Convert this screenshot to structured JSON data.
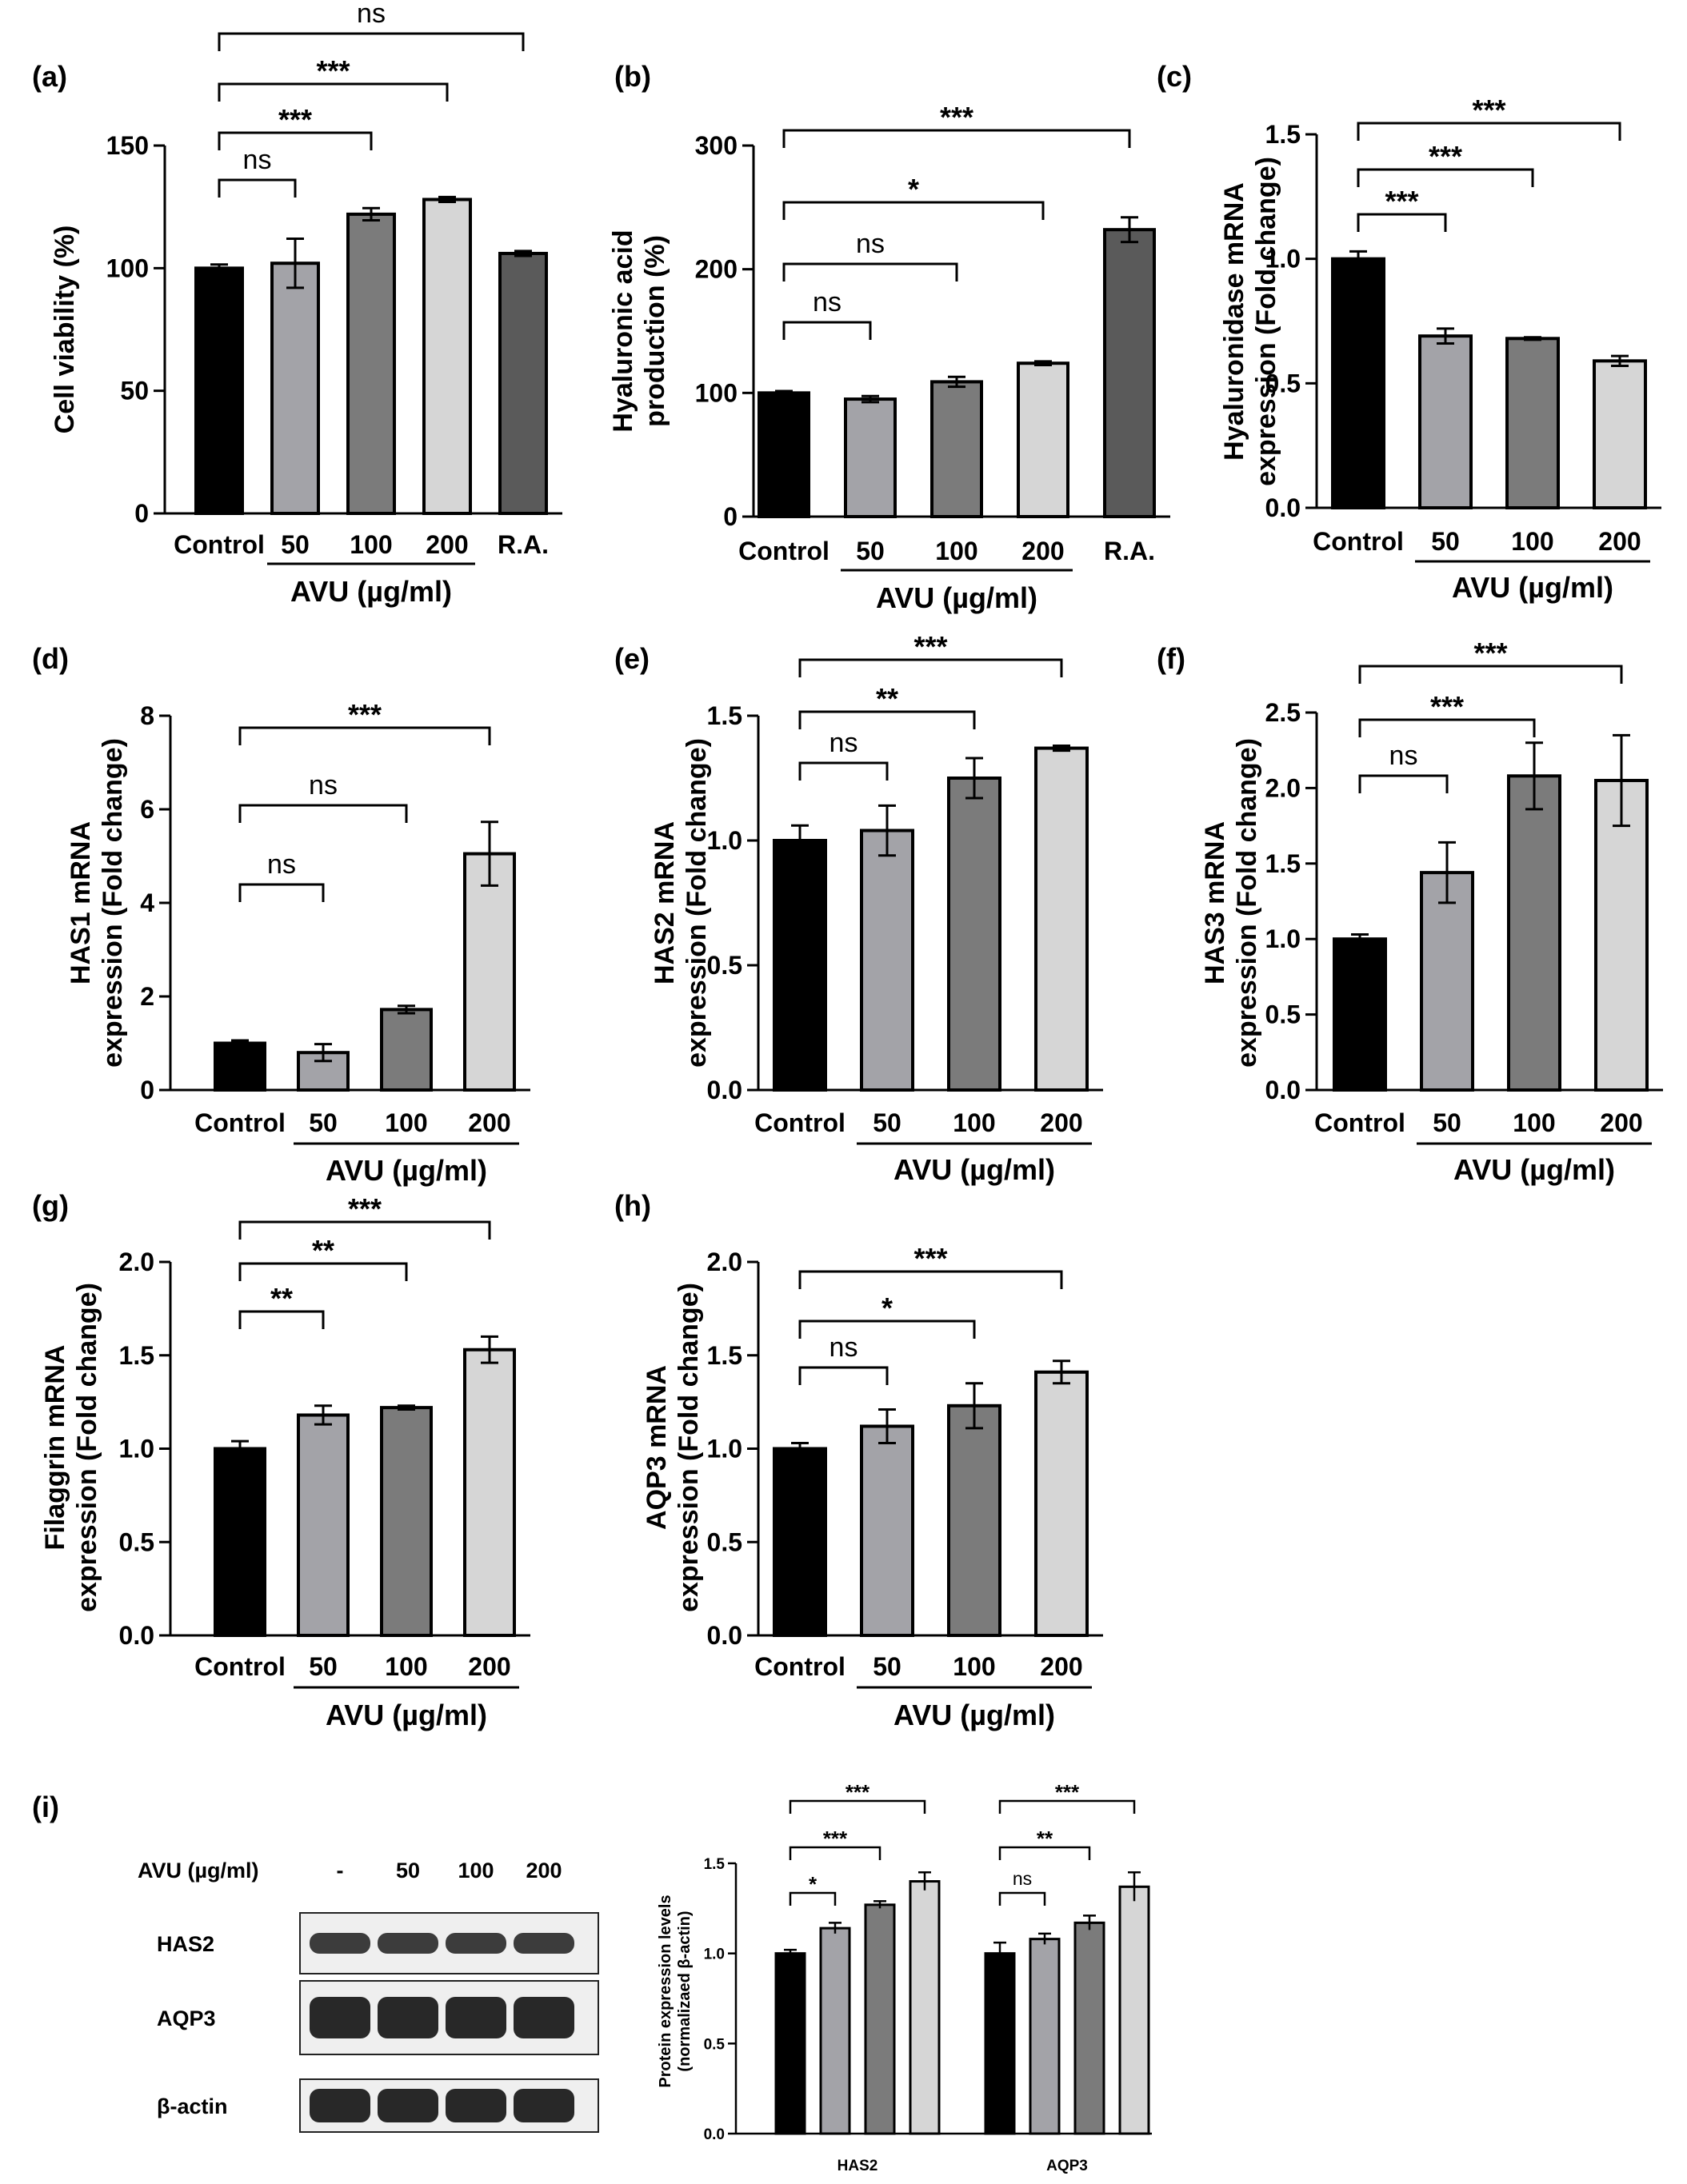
{
  "figure": {
    "fill_colors": [
      "#000000",
      "#a3a3a8",
      "#7b7b7b",
      "#d6d6d6",
      "#5a5a5a"
    ]
  },
  "chart_data": [
    {
      "id": "a",
      "panel_label": "(a)",
      "type": "bar",
      "ylabel": "Cell viability (%)",
      "ylim": [
        0,
        150
      ],
      "yticks": [
        0,
        50,
        100,
        150
      ],
      "categories": [
        "Control",
        "50",
        "100",
        "200",
        "R.A."
      ],
      "values": [
        100,
        102,
        122,
        128,
        106
      ],
      "errors": [
        1.5,
        10,
        2.5,
        1,
        1
      ],
      "group_label": "AVU (µg/ml)",
      "group_range": [
        1,
        3
      ],
      "brackets": [
        {
          "to": 1,
          "label": "ns"
        },
        {
          "to": 2,
          "label": "***"
        },
        {
          "to": 3,
          "label": "***"
        },
        {
          "to": 4,
          "label": "ns"
        }
      ]
    },
    {
      "id": "b",
      "panel_label": "(b)",
      "type": "bar",
      "ylabel": [
        "Hyaluronic acid",
        "production (%)"
      ],
      "ylim": [
        0,
        300
      ],
      "yticks": [
        0,
        100,
        200,
        300
      ],
      "categories": [
        "Control",
        "50",
        "100",
        "200",
        "R.A."
      ],
      "values": [
        100,
        95,
        109,
        124,
        232
      ],
      "errors": [
        1.5,
        2.5,
        4,
        1.5,
        10
      ],
      "group_label": "AVU (µg/ml)",
      "group_range": [
        1,
        3
      ],
      "brackets": [
        {
          "to": 1,
          "label": "ns"
        },
        {
          "to": 2,
          "label": "ns"
        },
        {
          "to": 3,
          "label": "*"
        },
        {
          "to": 4,
          "label": "***"
        }
      ]
    },
    {
      "id": "c",
      "panel_label": "(c)",
      "type": "bar",
      "ylabel": [
        "Hyaluronidase mRNA",
        "expression (Fold change)"
      ],
      "ylim": [
        0,
        1.5
      ],
      "yticks": [
        "0.0",
        "0.5",
        "1.0",
        "1.5"
      ],
      "categories": [
        "Control",
        "50",
        "100",
        "200"
      ],
      "values": [
        1.0,
        0.69,
        0.68,
        0.59
      ],
      "errors": [
        0.03,
        0.03,
        0.005,
        0.02
      ],
      "group_label": "AVU (µg/ml)",
      "group_range": [
        1,
        3
      ],
      "brackets": [
        {
          "to": 1,
          "label": "***"
        },
        {
          "to": 2,
          "label": "***"
        },
        {
          "to": 3,
          "label": "***"
        }
      ]
    },
    {
      "id": "d",
      "panel_label": "(d)",
      "type": "bar",
      "ylabel": [
        "HAS1 mRNA",
        "expression (Fold change)"
      ],
      "ylim": [
        0,
        8
      ],
      "yticks": [
        0,
        2,
        4,
        6,
        8
      ],
      "categories": [
        "Control",
        "50",
        "100",
        "200"
      ],
      "values": [
        1.0,
        0.8,
        1.72,
        5.05
      ],
      "errors": [
        0.06,
        0.18,
        0.08,
        0.68
      ],
      "group_label": "AVU (µg/ml)",
      "group_range": [
        1,
        3
      ],
      "brackets": [
        {
          "to": 1,
          "label": "ns"
        },
        {
          "to": 2,
          "label": "ns"
        },
        {
          "to": 3,
          "label": "***"
        }
      ]
    },
    {
      "id": "e",
      "panel_label": "(e)",
      "type": "bar",
      "ylabel": [
        "HAS2 mRNA",
        "expression (Fold change)"
      ],
      "ylim": [
        0,
        1.5
      ],
      "yticks": [
        "0.0",
        "0.5",
        "1.0",
        "1.5"
      ],
      "categories": [
        "Control",
        "50",
        "100",
        "200"
      ],
      "values": [
        1.0,
        1.04,
        1.25,
        1.37
      ],
      "errors": [
        0.06,
        0.1,
        0.08,
        0.01
      ],
      "group_label": "AVU (µg/ml)",
      "group_range": [
        1,
        3
      ],
      "brackets": [
        {
          "to": 1,
          "label": "ns"
        },
        {
          "to": 2,
          "label": "**"
        },
        {
          "to": 3,
          "label": "***"
        }
      ]
    },
    {
      "id": "f",
      "panel_label": "(f)",
      "type": "bar",
      "ylabel": [
        "HAS3 mRNA",
        "expression (Fold change)"
      ],
      "ylim": [
        0,
        2.5
      ],
      "yticks": [
        "0.0",
        "0.5",
        "1.0",
        "1.5",
        "2.0",
        "2.5"
      ],
      "categories": [
        "Control",
        "50",
        "100",
        "200"
      ],
      "values": [
        1.0,
        1.44,
        2.08,
        2.05
      ],
      "errors": [
        0.03,
        0.2,
        0.22,
        0.3
      ],
      "group_label": "AVU (µg/ml)",
      "group_range": [
        1,
        3
      ],
      "brackets": [
        {
          "to": 1,
          "label": "ns"
        },
        {
          "to": 2,
          "label": "***"
        },
        {
          "to": 3,
          "label": "***"
        }
      ]
    },
    {
      "id": "g",
      "panel_label": "(g)",
      "type": "bar",
      "ylabel": [
        "Filaggrin mRNA",
        "expression (Fold change)"
      ],
      "ylim": [
        0,
        2.0
      ],
      "yticks": [
        "0.0",
        "0.5",
        "1.0",
        "1.5",
        "2.0"
      ],
      "categories": [
        "Control",
        "50",
        "100",
        "200"
      ],
      "values": [
        1.0,
        1.18,
        1.22,
        1.53
      ],
      "errors": [
        0.04,
        0.05,
        0.01,
        0.07
      ],
      "group_label": "AVU (µg/ml)",
      "group_range": [
        1,
        3
      ],
      "brackets": [
        {
          "to": 1,
          "label": "**"
        },
        {
          "to": 2,
          "label": "**"
        },
        {
          "to": 3,
          "label": "***"
        }
      ]
    },
    {
      "id": "h",
      "panel_label": "(h)",
      "type": "bar",
      "ylabel": [
        "AQP3 mRNA",
        "expression (Fold change)"
      ],
      "ylim": [
        0,
        2.0
      ],
      "yticks": [
        "0.0",
        "0.5",
        "1.0",
        "1.5",
        "2.0"
      ],
      "categories": [
        "Control",
        "50",
        "100",
        "200"
      ],
      "values": [
        1.0,
        1.12,
        1.23,
        1.41
      ],
      "errors": [
        0.03,
        0.09,
        0.12,
        0.06
      ],
      "group_label": "AVU (µg/ml)",
      "group_range": [
        1,
        3
      ],
      "brackets": [
        {
          "to": 1,
          "label": "ns"
        },
        {
          "to": 2,
          "label": "*"
        },
        {
          "to": 3,
          "label": "***"
        }
      ]
    },
    {
      "id": "i",
      "panel_label": "(i)",
      "type": "bar",
      "ylabel": [
        "Protein expression levels",
        "(normalizaed β-actin)"
      ],
      "ylim": [
        0,
        1.5
      ],
      "yticks": [
        "0.0",
        "0.5",
        "1.0",
        "1.5"
      ],
      "groups": [
        "HAS2",
        "AQP3"
      ],
      "series": [
        {
          "name": "-",
          "values": [
            1.0,
            1.0
          ],
          "errors": [
            0.02,
            0.06
          ]
        },
        {
          "name": "50",
          "values": [
            1.14,
            1.08
          ],
          "errors": [
            0.03,
            0.03
          ]
        },
        {
          "name": "100",
          "values": [
            1.27,
            1.17
          ],
          "errors": [
            0.02,
            0.04
          ]
        },
        {
          "name": "200",
          "values": [
            1.4,
            1.37
          ],
          "errors": [
            0.05,
            0.08
          ]
        }
      ],
      "brackets": [
        [
          {
            "to": 1,
            "label": "*"
          },
          {
            "to": 2,
            "label": "***"
          },
          {
            "to": 3,
            "label": "***"
          }
        ],
        [
          {
            "to": 1,
            "label": "ns"
          },
          {
            "to": 2,
            "label": "**"
          },
          {
            "to": 3,
            "label": "***"
          }
        ]
      ]
    }
  ],
  "blot": {
    "treatment_label": "AVU (µg/ml)",
    "lanes": [
      "-",
      "50",
      "100",
      "200"
    ],
    "rows": [
      "HAS2",
      "AQP3",
      "β-actin"
    ]
  }
}
